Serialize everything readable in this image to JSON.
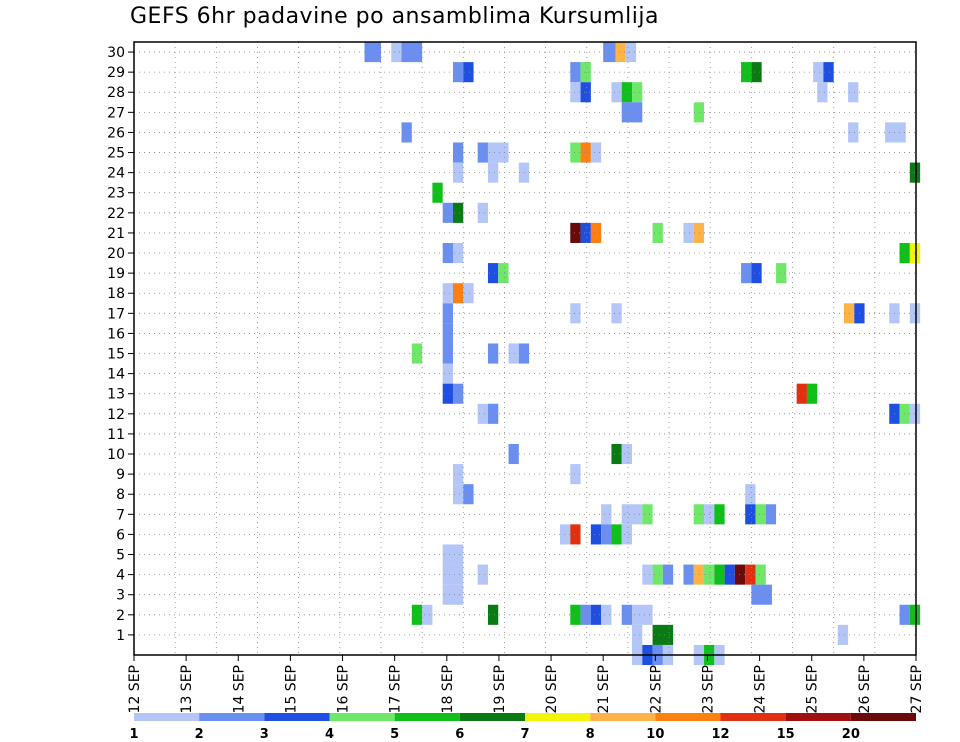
{
  "chart_data": {
    "type": "heatmap",
    "title": "GEFS 6hr padavine po ansamblima Kursumlija",
    "xlabel": "",
    "ylabel": "",
    "x_start": "12 SEP 00z",
    "x_range_days": [
      0,
      15
    ],
    "x_ticks": [
      "12 SEP",
      "13 SEP",
      "14 SEP",
      "15 SEP",
      "16 SEP",
      "17 SEP",
      "18 SEP",
      "19 SEP",
      "20 SEP",
      "21 SEP",
      "22 SEP",
      "23 SEP",
      "24 SEP",
      "25 SEP",
      "26 SEP",
      "27 SEP"
    ],
    "y_ticks": [
      "1",
      "2",
      "3",
      "4",
      "5",
      "6",
      "7",
      "8",
      "9",
      "10",
      "11",
      "12",
      "13",
      "14",
      "15",
      "16",
      "17",
      "18",
      "19",
      "20",
      "21",
      "22",
      "23",
      "24",
      "25",
      "26",
      "27",
      "28",
      "29",
      "30"
    ],
    "ylim": [
      0,
      30
    ],
    "grid": true,
    "legend": {
      "placement": "bottom",
      "labels": [
        "1",
        "2",
        "3",
        "4",
        "5",
        "6",
        "7",
        "8",
        "10",
        "12",
        "15",
        "20"
      ],
      "colors": [
        "#b3c6f7",
        "#6a8ff0",
        "#1f4fe0",
        "#6fe86a",
        "#10c01a",
        "#0a7a14",
        "#f4f40a",
        "#ffb347",
        "#ff7f10",
        "#e03010",
        "#a01010",
        "#6a0a0a"
      ]
    },
    "levels": [
      1,
      2,
      3,
      4,
      5,
      6,
      7,
      8,
      10,
      12,
      15,
      20
    ],
    "cells": [
      [
        5.6,
        6.0,
        30,
        "#6a8ff0"
      ],
      [
        6.25,
        6.5,
        30,
        "#b3c6f7"
      ],
      [
        6.5,
        7.0,
        30,
        "#6a8ff0"
      ],
      [
        11.4,
        11.7,
        30,
        "#6a8ff0"
      ],
      [
        11.7,
        11.95,
        30,
        "#ffb347"
      ],
      [
        11.95,
        12.2,
        30,
        "#b3c6f7"
      ],
      [
        7.75,
        8.0,
        29,
        "#6a8ff0"
      ],
      [
        8.0,
        8.25,
        29,
        "#1f4fe0"
      ],
      [
        10.6,
        10.85,
        29,
        "#6a8ff0"
      ],
      [
        10.85,
        11.1,
        29,
        "#6fe86a"
      ],
      [
        14.75,
        15.0,
        29,
        "#10c01a"
      ],
      [
        15.0,
        15.25,
        29,
        "#0a7a14"
      ],
      [
        16.5,
        16.75,
        29,
        "#b3c6f7"
      ],
      [
        16.75,
        17.0,
        29,
        "#1f4fe0"
      ],
      [
        10.6,
        10.85,
        28,
        "#b3c6f7"
      ],
      [
        10.85,
        11.1,
        28,
        "#1f4fe0"
      ],
      [
        11.6,
        11.85,
        28,
        "#b3c6f7"
      ],
      [
        11.85,
        12.1,
        28,
        "#10c01a"
      ],
      [
        12.1,
        12.35,
        28,
        "#6fe86a"
      ],
      [
        16.6,
        16.85,
        28,
        "#b3c6f7"
      ],
      [
        17.35,
        17.6,
        28,
        "#b3c6f7"
      ],
      [
        11.85,
        12.35,
        27,
        "#6a8ff0"
      ],
      [
        13.6,
        13.85,
        27,
        "#6fe86a"
      ],
      [
        6.5,
        6.75,
        26,
        "#6a8ff0"
      ],
      [
        17.35,
        17.6,
        26,
        "#b3c6f7"
      ],
      [
        18.25,
        18.75,
        26,
        "#b3c6f7"
      ],
      [
        7.75,
        8.0,
        25,
        "#6a8ff0"
      ],
      [
        8.35,
        8.6,
        25,
        "#6a8ff0"
      ],
      [
        8.6,
        9.1,
        25,
        "#b3c6f7"
      ],
      [
        10.6,
        10.85,
        25,
        "#6fe86a"
      ],
      [
        10.85,
        11.1,
        25,
        "#ff7f10"
      ],
      [
        11.1,
        11.35,
        25,
        "#b3c6f7"
      ],
      [
        7.75,
        8.0,
        24,
        "#b3c6f7"
      ],
      [
        8.6,
        8.85,
        24,
        "#b3c6f7"
      ],
      [
        9.35,
        9.6,
        24,
        "#b3c6f7"
      ],
      [
        18.85,
        19.1,
        24,
        "#0a7a14"
      ],
      [
        7.25,
        7.5,
        23,
        "#10c01a"
      ],
      [
        7.5,
        7.75,
        22,
        "#6a8ff0"
      ],
      [
        7.75,
        8.0,
        22,
        "#0a7a14"
      ],
      [
        8.35,
        8.6,
        22,
        "#b3c6f7"
      ],
      [
        10.6,
        10.85,
        21,
        "#6a0a0a"
      ],
      [
        10.85,
        11.1,
        21,
        "#1f4fe0"
      ],
      [
        11.1,
        11.35,
        21,
        "#ff7f10"
      ],
      [
        12.6,
        12.85,
        21,
        "#6fe86a"
      ],
      [
        13.35,
        13.6,
        21,
        "#b3c6f7"
      ],
      [
        13.6,
        13.85,
        21,
        "#ffb347"
      ],
      [
        7.5,
        7.75,
        20,
        "#6a8ff0"
      ],
      [
        7.75,
        8.0,
        20,
        "#b3c6f7"
      ],
      [
        18.6,
        18.85,
        20,
        "#10c01a"
      ],
      [
        18.85,
        19.1,
        20,
        "#f4f40a"
      ],
      [
        8.6,
        8.85,
        19,
        "#1f4fe0"
      ],
      [
        8.85,
        9.1,
        19,
        "#6fe86a"
      ],
      [
        14.75,
        15.0,
        19,
        "#6a8ff0"
      ],
      [
        15.0,
        15.25,
        19,
        "#1f4fe0"
      ],
      [
        15.6,
        15.85,
        19,
        "#6fe86a"
      ],
      [
        7.5,
        7.75,
        18,
        "#b3c6f7"
      ],
      [
        7.75,
        8.0,
        18,
        "#ff7f10"
      ],
      [
        8.0,
        8.25,
        18,
        "#b3c6f7"
      ],
      [
        7.5,
        7.75,
        17,
        "#6a8ff0"
      ],
      [
        10.6,
        10.85,
        17,
        "#b3c6f7"
      ],
      [
        11.6,
        11.85,
        17,
        "#b3c6f7"
      ],
      [
        17.25,
        17.5,
        17,
        "#ffb347"
      ],
      [
        17.5,
        17.75,
        17,
        "#1f4fe0"
      ],
      [
        18.35,
        18.6,
        17,
        "#b3c6f7"
      ],
      [
        18.85,
        19.1,
        17,
        "#b3c6f7"
      ],
      [
        7.5,
        7.75,
        16,
        "#6a8ff0"
      ],
      [
        6.75,
        7.0,
        15,
        "#6fe86a"
      ],
      [
        7.5,
        7.75,
        15,
        "#6a8ff0"
      ],
      [
        8.6,
        8.85,
        15,
        "#6a8ff0"
      ],
      [
        9.1,
        9.35,
        15,
        "#b3c6f7"
      ],
      [
        9.35,
        9.6,
        15,
        "#6a8ff0"
      ],
      [
        7.5,
        7.75,
        14,
        "#b3c6f7"
      ],
      [
        7.5,
        7.75,
        13,
        "#1f4fe0"
      ],
      [
        7.75,
        8.0,
        13,
        "#6a8ff0"
      ],
      [
        16.1,
        16.35,
        13,
        "#e03010"
      ],
      [
        16.35,
        16.6,
        13,
        "#10c01a"
      ],
      [
        8.35,
        8.6,
        12,
        "#b3c6f7"
      ],
      [
        8.6,
        8.85,
        12,
        "#6a8ff0"
      ],
      [
        18.35,
        18.6,
        12,
        "#1f4fe0"
      ],
      [
        18.6,
        18.85,
        12,
        "#6fe86a"
      ],
      [
        18.85,
        19.1,
        12,
        "#b3c6f7"
      ],
      [
        9.1,
        9.35,
        10,
        "#6a8ff0"
      ],
      [
        11.6,
        11.85,
        10,
        "#0a7a14"
      ],
      [
        11.85,
        12.1,
        10,
        "#b3c6f7"
      ],
      [
        7.75,
        8.0,
        9,
        "#b3c6f7"
      ],
      [
        10.6,
        10.85,
        9,
        "#b3c6f7"
      ],
      [
        7.75,
        8.0,
        8,
        "#b3c6f7"
      ],
      [
        8.0,
        8.25,
        8,
        "#6a8ff0"
      ],
      [
        14.85,
        15.1,
        8,
        "#b3c6f7"
      ],
      [
        11.35,
        11.6,
        7,
        "#b3c6f7"
      ],
      [
        11.85,
        12.35,
        7,
        "#b3c6f7"
      ],
      [
        12.35,
        12.6,
        7,
        "#6fe86a"
      ],
      [
        13.6,
        13.85,
        7,
        "#6fe86a"
      ],
      [
        13.85,
        14.1,
        7,
        "#b3c6f7"
      ],
      [
        14.1,
        14.35,
        7,
        "#10c01a"
      ],
      [
        14.85,
        15.1,
        7,
        "#1f4fe0"
      ],
      [
        15.1,
        15.35,
        7,
        "#6fe86a"
      ],
      [
        15.35,
        15.6,
        7,
        "#6a8ff0"
      ],
      [
        10.35,
        10.6,
        6,
        "#b3c6f7"
      ],
      [
        10.6,
        10.85,
        6,
        "#e03010"
      ],
      [
        11.1,
        11.35,
        6,
        "#1f4fe0"
      ],
      [
        11.35,
        11.6,
        6,
        "#6a8ff0"
      ],
      [
        11.6,
        11.85,
        6,
        "#10c01a"
      ],
      [
        11.85,
        12.1,
        6,
        "#b3c6f7"
      ],
      [
        7.5,
        8.0,
        5,
        "#b3c6f7"
      ],
      [
        7.5,
        8.0,
        4,
        "#b3c6f7"
      ],
      [
        8.35,
        8.6,
        4,
        "#b3c6f7"
      ],
      [
        12.35,
        12.6,
        4,
        "#b3c6f7"
      ],
      [
        12.6,
        12.85,
        4,
        "#6fe86a"
      ],
      [
        12.85,
        13.1,
        4,
        "#6a8ff0"
      ],
      [
        13.35,
        13.6,
        4,
        "#6a8ff0"
      ],
      [
        13.6,
        13.85,
        4,
        "#ffb347"
      ],
      [
        13.85,
        14.1,
        4,
        "#6fe86a"
      ],
      [
        14.1,
        14.35,
        4,
        "#10c01a"
      ],
      [
        14.35,
        14.6,
        4,
        "#1f4fe0"
      ],
      [
        14.6,
        14.85,
        4,
        "#6a0a0a"
      ],
      [
        14.85,
        15.1,
        4,
        "#e03010"
      ],
      [
        15.1,
        15.35,
        4,
        "#6fe86a"
      ],
      [
        7.5,
        8.0,
        3,
        "#b3c6f7"
      ],
      [
        15.0,
        15.5,
        3,
        "#6a8ff0"
      ],
      [
        6.75,
        7.0,
        2,
        "#10c01a"
      ],
      [
        7.0,
        7.25,
        2,
        "#b3c6f7"
      ],
      [
        8.6,
        8.85,
        2,
        "#0a7a14"
      ],
      [
        10.6,
        10.85,
        2,
        "#10c01a"
      ],
      [
        10.85,
        11.1,
        2,
        "#6a8ff0"
      ],
      [
        11.1,
        11.35,
        2,
        "#1f4fe0"
      ],
      [
        11.35,
        11.6,
        2,
        "#b3c6f7"
      ],
      [
        11.85,
        12.1,
        2,
        "#6a8ff0"
      ],
      [
        12.1,
        12.6,
        2,
        "#b3c6f7"
      ],
      [
        18.6,
        18.85,
        2,
        "#6a8ff0"
      ],
      [
        18.85,
        19.1,
        2,
        "#10c01a"
      ],
      [
        12.1,
        12.35,
        1,
        "#b3c6f7"
      ],
      [
        12.6,
        13.1,
        1,
        "#0a7a14"
      ],
      [
        17.1,
        17.35,
        1,
        "#b3c6f7"
      ],
      [
        12.1,
        12.35,
        0,
        "#b3c6f7"
      ],
      [
        12.35,
        12.6,
        0,
        "#1f4fe0"
      ],
      [
        12.6,
        12.85,
        0,
        "#6a8ff0"
      ],
      [
        12.85,
        13.1,
        0,
        "#b3c6f7"
      ],
      [
        13.6,
        13.85,
        0,
        "#b3c6f7"
      ],
      [
        13.85,
        14.1,
        0,
        "#10c01a"
      ],
      [
        14.1,
        14.35,
        0,
        "#b3c6f7"
      ]
    ]
  }
}
